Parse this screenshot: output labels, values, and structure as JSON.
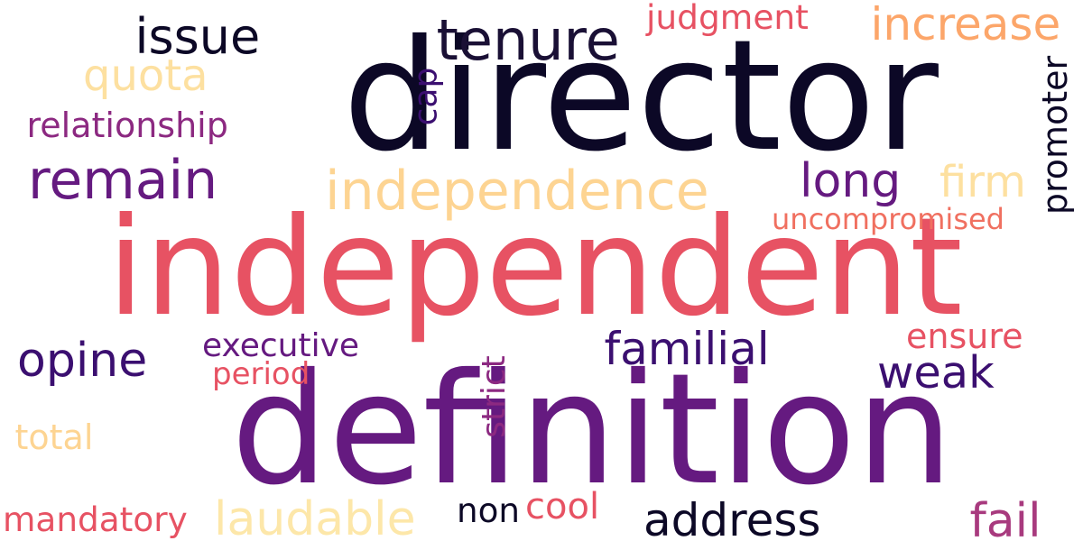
{
  "colors": {
    "background": "#ffffff",
    "near_black": "#0c0826",
    "dark_purple": "#3b0f70",
    "purple": "#651a80",
    "magenta": "#8c2981",
    "pink_red": "#e75263",
    "salmon": "#f07060",
    "orange": "#fca66a",
    "peach": "#fdd492",
    "pale_yellow": "#fde7a9"
  },
  "words": [
    {
      "text": "director",
      "color": "#0c0826",
      "vertical": false
    },
    {
      "text": "independent",
      "color": "#e75263",
      "vertical": false
    },
    {
      "text": "definition",
      "color": "#651a80",
      "vertical": false
    },
    {
      "text": "tenure",
      "color": "#1a1035",
      "vertical": false
    },
    {
      "text": "independence",
      "color": "#fdd492",
      "vertical": false
    },
    {
      "text": "remain",
      "color": "#651a80",
      "vertical": false
    },
    {
      "text": "increase",
      "color": "#fca66a",
      "vertical": false
    },
    {
      "text": "issue",
      "color": "#0c0826",
      "vertical": false
    },
    {
      "text": "quota",
      "color": "#fde0a0",
      "vertical": false
    },
    {
      "text": "judgment",
      "color": "#e75263",
      "vertical": false
    },
    {
      "text": "relationship",
      "color": "#8c2981",
      "vertical": false
    },
    {
      "text": "cap",
      "color": "#3b0f70",
      "vertical": true
    },
    {
      "text": "promoter",
      "color": "#0c0826",
      "vertical": true
    },
    {
      "text": "long",
      "color": "#651a80",
      "vertical": false
    },
    {
      "text": "firm",
      "color": "#fde0a0",
      "vertical": false
    },
    {
      "text": "uncompromised",
      "color": "#f07060",
      "vertical": false
    },
    {
      "text": "opine",
      "color": "#3b0f70",
      "vertical": false
    },
    {
      "text": "executive",
      "color": "#651a80",
      "vertical": false
    },
    {
      "text": "period",
      "color": "#e75263",
      "vertical": false
    },
    {
      "text": "familial",
      "color": "#3b0f70",
      "vertical": false
    },
    {
      "text": "weak",
      "color": "#3b0f70",
      "vertical": false
    },
    {
      "text": "ensure",
      "color": "#e75263",
      "vertical": false
    },
    {
      "text": "strict",
      "color": "#8c2981",
      "vertical": true
    },
    {
      "text": "total",
      "color": "#fdd492",
      "vertical": false
    },
    {
      "text": "mandatory",
      "color": "#e75263",
      "vertical": false
    },
    {
      "text": "laudable",
      "color": "#fde7a9",
      "vertical": false
    },
    {
      "text": "non",
      "color": "#0c0826",
      "vertical": false
    },
    {
      "text": "cool",
      "color": "#e75263",
      "vertical": false
    },
    {
      "text": "address",
      "color": "#0c0826",
      "vertical": false
    },
    {
      "text": "fail",
      "color": "#a83a7e",
      "vertical": false
    }
  ]
}
